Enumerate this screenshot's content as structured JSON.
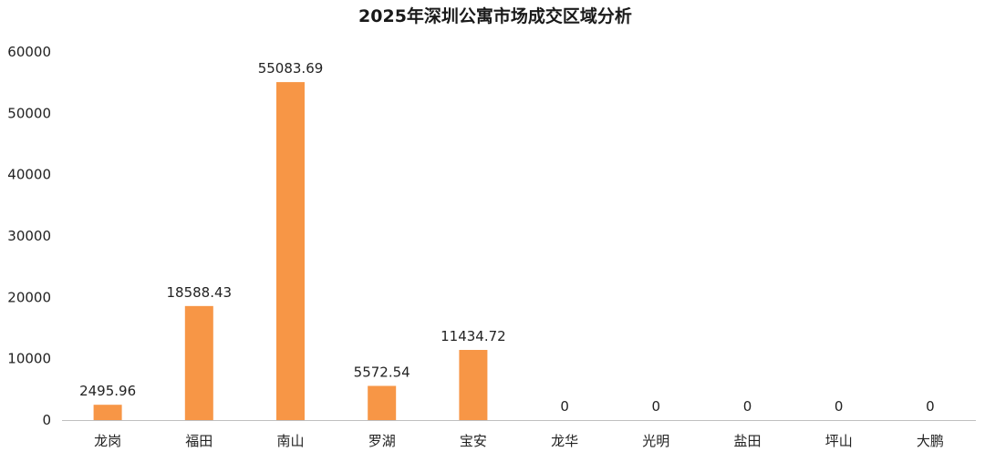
{
  "chart_data": {
    "type": "bar",
    "title": "2025年深圳公寓市场成交区域分析",
    "categories": [
      "龙岗",
      "福田",
      "南山",
      "罗湖",
      "宝安",
      "龙华",
      "光明",
      "盐田",
      "坪山",
      "大鹏"
    ],
    "values": [
      2495.96,
      18588.43,
      55083.69,
      5572.54,
      11434.72,
      0,
      0,
      0,
      0,
      0
    ],
    "data_labels": [
      "2495.96",
      "18588.43",
      "55083.69",
      "5572.54",
      "11434.72",
      "0",
      "0",
      "0",
      "0",
      "0"
    ],
    "y_ticks": [
      "0",
      "10000",
      "20000",
      "30000",
      "40000",
      "50000",
      "60000"
    ],
    "ylim": [
      0,
      60000
    ],
    "grid": false,
    "legend": "none",
    "bar_color": "#F79646",
    "axis_color": "#BFBFBF"
  }
}
